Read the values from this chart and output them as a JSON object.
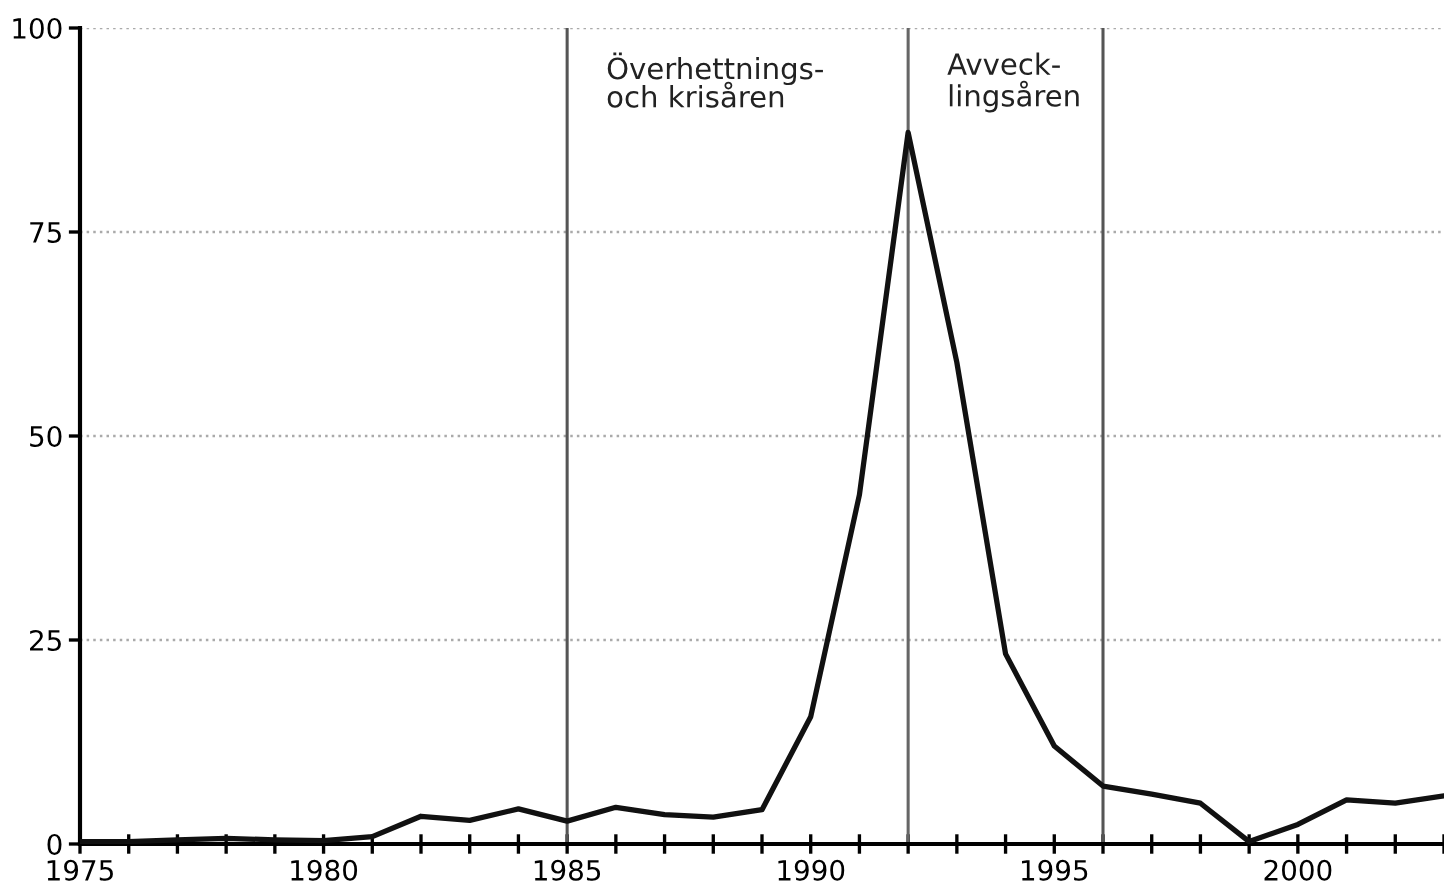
{
  "chart_data": {
    "type": "line",
    "x": [
      1975,
      1976,
      1977,
      1978,
      1979,
      1980,
      1981,
      1982,
      1983,
      1984,
      1985,
      1986,
      1987,
      1988,
      1989,
      1990,
      1991,
      1992,
      1993,
      1994,
      1995,
      1996,
      1997,
      1998,
      1999,
      2000,
      2001,
      2002,
      2003
    ],
    "series": [
      {
        "color": "#111111",
        "values": [
          0.3,
          0.3,
          0.5,
          0.7,
          0.5,
          0.4,
          0.9,
          3.4,
          2.9,
          4.3,
          2.8,
          4.5,
          3.6,
          3.3,
          4.2,
          15.6,
          42.8,
          87.2,
          59,
          23.3,
          12.0,
          7.1,
          6.1,
          5.0,
          0.3,
          2.4,
          5.4,
          5.0,
          5.9
        ]
      }
    ],
    "xlim": [
      1975,
      2003
    ],
    "xticks": [
      1975,
      {
        "value": 1976,
        "label": null
      },
      {
        "value": 1977,
        "label": null
      },
      {
        "value": 1978,
        "label": null
      },
      {
        "value": 1979,
        "label": null
      },
      1980,
      {
        "value": 1981,
        "label": null
      },
      {
        "value": 1982,
        "label": null
      },
      {
        "value": 1983,
        "label": null
      },
      {
        "value": 1984,
        "label": null
      },
      1985,
      {
        "value": 1986,
        "label": null
      },
      {
        "value": 1987,
        "label": null
      },
      {
        "value": 1988,
        "label": null
      },
      {
        "value": 1989,
        "label": null
      },
      1990,
      {
        "value": 1991,
        "label": null
      },
      {
        "value": 1992,
        "label": null
      },
      {
        "value": 1993,
        "label": null
      },
      {
        "value": 1994,
        "label": null
      },
      1995,
      {
        "value": 1996,
        "label": null
      },
      {
        "value": 1997,
        "label": null
      },
      {
        "value": 1998,
        "label": null
      },
      {
        "value": 1999,
        "label": null
      },
      2000,
      {
        "value": 2001,
        "label": null
      },
      {
        "value": 2002,
        "label": null
      },
      {
        "value": 2003,
        "label": null
      }
    ],
    "ylim": [
      0,
      100
    ],
    "yticks": [
      0,
      25,
      50,
      75,
      100
    ],
    "grid": "y",
    "line_style": "solid",
    "marker": "none",
    "ref_lines": [
      {
        "axis": "x",
        "value": 1985,
        "label": "Överhettnings-\noch krisåren",
        "color": "#555555"
      },
      {
        "axis": "x",
        "value": 1992,
        "label": "Avveck-\nlingsåren",
        "color": "#666666"
      },
      {
        "axis": "x",
        "value": 1996,
        "label": null,
        "color": "#555555"
      }
    ]
  }
}
